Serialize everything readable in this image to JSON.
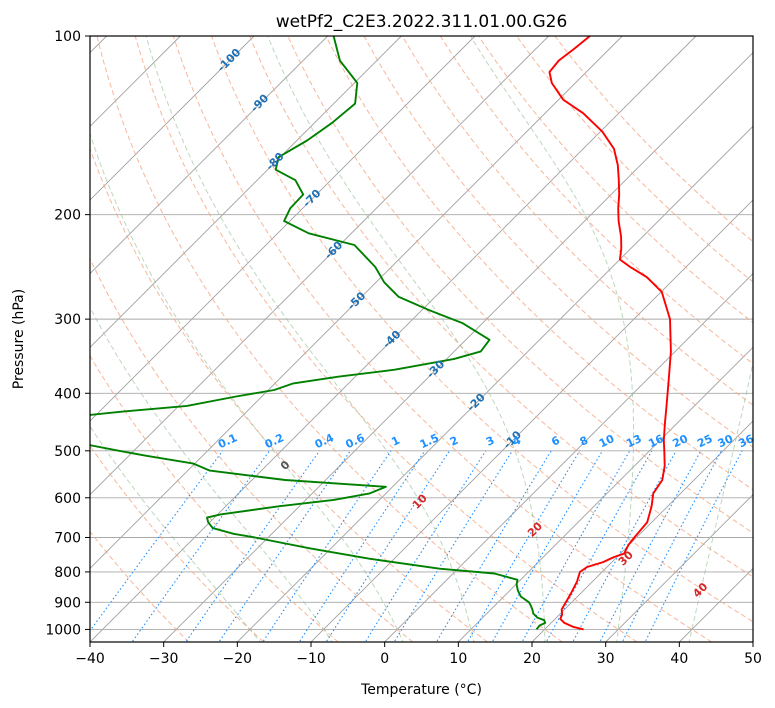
{
  "chart_data": {
    "type": "line",
    "title": "wetPf2_C2E3.2022.311.01.00.G26",
    "xlabel": "Temperature (°C)",
    "ylabel": "Pressure (hPa)",
    "xlim": [
      -40,
      50
    ],
    "ylim": [
      1050,
      100
    ],
    "y_scale": "log",
    "skew": 45,
    "grid": true,
    "x_ticks": [
      -40,
      -30,
      -20,
      -10,
      0,
      10,
      20,
      30,
      40,
      50
    ],
    "y_ticks": [
      100,
      200,
      300,
      400,
      500,
      600,
      700,
      800,
      900,
      1000
    ],
    "series": [
      {
        "role": "temperature",
        "color": "#ff0000",
        "points": [
          [
            1000,
            25.3
          ],
          [
            990,
            23.5
          ],
          [
            975,
            21.8
          ],
          [
            960,
            20.7
          ],
          [
            945,
            20.4
          ],
          [
            925,
            19.6
          ],
          [
            900,
            19.2
          ],
          [
            870,
            18.7
          ],
          [
            830,
            17.9
          ],
          [
            800,
            17.0
          ],
          [
            785,
            17.3
          ],
          [
            770,
            18.8
          ],
          [
            755,
            19.6
          ],
          [
            745,
            20.5
          ],
          [
            720,
            19.9
          ],
          [
            700,
            19.7
          ],
          [
            660,
            19.4
          ],
          [
            620,
            17.8
          ],
          [
            590,
            16.3
          ],
          [
            560,
            15.7
          ],
          [
            530,
            14.1
          ],
          [
            500,
            12.0
          ],
          [
            480,
            10.5
          ],
          [
            450,
            8.4
          ],
          [
            420,
            6.2
          ],
          [
            380,
            3.0
          ],
          [
            340,
            -0.6
          ],
          [
            300,
            -5.1
          ],
          [
            270,
            -9.9
          ],
          [
            255,
            -13.9
          ],
          [
            245,
            -17.6
          ],
          [
            238,
            -20.0
          ],
          [
            228,
            -21.3
          ],
          [
            218,
            -22.9
          ],
          [
            205,
            -25.4
          ],
          [
            195,
            -27.2
          ],
          [
            185,
            -28.9
          ],
          [
            175,
            -30.9
          ],
          [
            165,
            -33.1
          ],
          [
            155,
            -35.8
          ],
          [
            145,
            -39.7
          ],
          [
            135,
            -44.8
          ],
          [
            128,
            -49.4
          ],
          [
            120,
            -53.2
          ],
          [
            115,
            -55.0
          ],
          [
            110,
            -55.3
          ],
          [
            105,
            -54.8
          ],
          [
            100,
            -54.4
          ]
        ]
      },
      {
        "role": "dewpoint",
        "color": "#008000",
        "points": [
          [
            1000,
            18.9
          ],
          [
            985,
            18.8
          ],
          [
            975,
            19.2
          ],
          [
            965,
            18.7
          ],
          [
            955,
            17.4
          ],
          [
            940,
            16.3
          ],
          [
            925,
            15.6
          ],
          [
            910,
            14.8
          ],
          [
            900,
            14.2
          ],
          [
            880,
            12.3
          ],
          [
            860,
            11.1
          ],
          [
            840,
            10.1
          ],
          [
            825,
            9.6
          ],
          [
            805,
            5.6
          ],
          [
            790,
            -2.5
          ],
          [
            760,
            -13.4
          ],
          [
            730,
            -22.9
          ],
          [
            700,
            -31.8
          ],
          [
            690,
            -35.2
          ],
          [
            675,
            -38.8
          ],
          [
            660,
            -40.2
          ],
          [
            648,
            -41.0
          ],
          [
            640,
            -39.6
          ],
          [
            620,
            -32.7
          ],
          [
            605,
            -26.2
          ],
          [
            590,
            -22.2
          ],
          [
            575,
            -20.9
          ],
          [
            560,
            -35.5
          ],
          [
            540,
            -47.0
          ],
          [
            525,
            -50.3
          ],
          [
            510,
            -57.5
          ],
          [
            500,
            -62.0
          ],
          [
            480,
            -70.8
          ],
          [
            460,
            -76.6
          ],
          [
            450,
            -76.3
          ],
          [
            440,
            -74.2
          ],
          [
            430,
            -67.3
          ],
          [
            420,
            -58.9
          ],
          [
            405,
            -53.5
          ],
          [
            395,
            -49.2
          ],
          [
            385,
            -47.5
          ],
          [
            375,
            -42.2
          ],
          [
            365,
            -35.6
          ],
          [
            350,
            -29.0
          ],
          [
            340,
            -26.4
          ],
          [
            325,
            -26.8
          ],
          [
            305,
            -32.6
          ],
          [
            290,
            -38.9
          ],
          [
            275,
            -45.0
          ],
          [
            260,
            -48.9
          ],
          [
            245,
            -52.2
          ],
          [
            225,
            -58.0
          ],
          [
            215,
            -65.8
          ],
          [
            205,
            -70.8
          ],
          [
            195,
            -71.7
          ],
          [
            185,
            -71.8
          ],
          [
            175,
            -74.8
          ],
          [
            168,
            -78.9
          ],
          [
            160,
            -80.2
          ],
          [
            150,
            -78.6
          ],
          [
            140,
            -77.6
          ],
          [
            130,
            -77.1
          ],
          [
            120,
            -79.6
          ],
          [
            110,
            -85.0
          ],
          [
            100,
            -89.2
          ]
        ]
      }
    ],
    "dry_adiabats": [
      -30,
      -20,
      -10,
      0,
      10,
      20,
      30,
      40,
      50,
      60,
      70,
      80,
      90,
      100,
      110,
      120,
      130,
      140
    ],
    "moist_adiabats": [
      -20,
      -10,
      0,
      10,
      20,
      30,
      40
    ],
    "moist_adiabat_labels": [
      "0",
      "10",
      "20",
      "30",
      "40"
    ],
    "mixing_ratios": [
      0.1,
      0.2,
      0.4,
      0.6,
      1,
      1.5,
      2,
      3,
      4,
      6,
      8,
      10,
      13,
      16,
      20,
      25,
      30,
      36
    ],
    "mixing_ratio_labels": [
      "0.1",
      "0.2",
      "0.4",
      "0.6",
      "1",
      "1.5",
      "2",
      "3",
      "4",
      "6",
      "8",
      "10",
      "13",
      "16",
      "20",
      "25",
      "30",
      "36"
    ],
    "isotherm_labels": [
      {
        "text": "-100",
        "t": -100,
        "p": 110
      },
      {
        "text": "-90",
        "t": -90,
        "p": 130
      },
      {
        "text": "-80",
        "t": -80,
        "p": 163
      },
      {
        "text": "-70",
        "t": -70,
        "p": 188
      },
      {
        "text": "-60",
        "t": -60,
        "p": 230
      },
      {
        "text": "-50",
        "t": -50,
        "p": 280
      },
      {
        "text": "-40",
        "t": -40,
        "p": 325
      },
      {
        "text": "-30",
        "t": -30,
        "p": 365
      },
      {
        "text": "-20",
        "t": -20,
        "p": 415
      },
      {
        "text": "-10",
        "t": -10,
        "p": 480
      }
    ],
    "colors": {
      "temperature": "#ff0000",
      "dewpoint": "#008000",
      "dry_adiabat": "#f4a582",
      "moist_adiabat": "#8fbc8f",
      "mixing_ratio": "#1e90ff",
      "isotherm": "#808080",
      "isobar": "#a9a9a9",
      "label_iso": "#1f6fb4",
      "label_mix": "#1e90ff",
      "label_moist": "#d62728"
    }
  }
}
